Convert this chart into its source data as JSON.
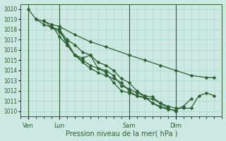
{
  "xlabel": "Pression niveau de la mer( hPa )",
  "background_color": "#cce8e2",
  "grid_color": "#aad4cc",
  "line_color": "#2d6030",
  "ylim": [
    1009.5,
    1020.5
  ],
  "yticks": [
    1010,
    1011,
    1012,
    1013,
    1014,
    1015,
    1016,
    1017,
    1018,
    1019,
    1020
  ],
  "day_labels": [
    "Ven",
    "Lun",
    "Sam",
    "Dim"
  ],
  "day_positions": [
    1,
    5,
    14,
    20
  ],
  "xlim": [
    0,
    26
  ],
  "lines": [
    {
      "x": [
        1,
        2,
        3,
        4,
        5,
        7,
        9,
        11,
        14,
        16,
        18,
        20,
        22,
        24,
        25
      ],
      "y": [
        1020.0,
        1019.0,
        1018.8,
        1018.5,
        1018.3,
        1017.5,
        1016.8,
        1016.3,
        1015.5,
        1015.0,
        1014.5,
        1014.0,
        1013.5,
        1013.3,
        1013.3
      ]
    },
    {
      "x": [
        2,
        3,
        4,
        5,
        6,
        7,
        8,
        9,
        10,
        11,
        12,
        13,
        14,
        15,
        16,
        17,
        18,
        19,
        20
      ],
      "y": [
        1019.0,
        1018.5,
        1018.2,
        1018.0,
        1017.0,
        1016.5,
        1015.8,
        1015.5,
        1014.8,
        1014.5,
        1014.0,
        1013.2,
        1012.8,
        1012.0,
        1011.5,
        1011.4,
        1010.8,
        1010.3,
        1010.0
      ]
    },
    {
      "x": [
        3,
        4,
        5,
        6,
        7,
        8,
        9,
        10,
        11,
        12,
        13,
        14,
        15,
        16,
        17,
        18,
        19
      ],
      "y": [
        1018.9,
        1018.2,
        1017.8,
        1016.8,
        1015.5,
        1015.2,
        1015.5,
        1014.2,
        1013.8,
        1012.8,
        1012.0,
        1011.8,
        1011.5,
        1011.4,
        1010.8,
        1010.4,
        1010.2
      ]
    },
    {
      "x": [
        4,
        5,
        6,
        7,
        8,
        9,
        10,
        11,
        12,
        13,
        14,
        15,
        16,
        17,
        18,
        19,
        20,
        21,
        22
      ],
      "y": [
        1018.5,
        1017.3,
        1016.5,
        1015.5,
        1015.0,
        1014.5,
        1014.2,
        1014.0,
        1013.5,
        1012.5,
        1012.2,
        1011.8,
        1011.5,
        1010.8,
        1010.5,
        1010.2,
        1010.1,
        1010.5,
        1011.2
      ]
    },
    {
      "x": [
        5,
        6,
        7,
        8,
        9,
        10,
        11,
        12,
        13,
        14,
        15,
        16,
        17,
        18,
        19,
        20,
        21,
        22,
        23,
        24,
        25
      ],
      "y": [
        1018.1,
        1016.5,
        1015.5,
        1014.8,
        1014.2,
        1013.8,
        1013.5,
        1013.2,
        1012.8,
        1012.0,
        1011.5,
        1011.3,
        1011.2,
        1010.8,
        1010.5,
        1010.3,
        1010.3,
        1010.3,
        1011.5,
        1011.8,
        1011.5
      ]
    }
  ],
  "marker_size": 2.5,
  "linewidth": 0.9,
  "minor_x_step": 1
}
